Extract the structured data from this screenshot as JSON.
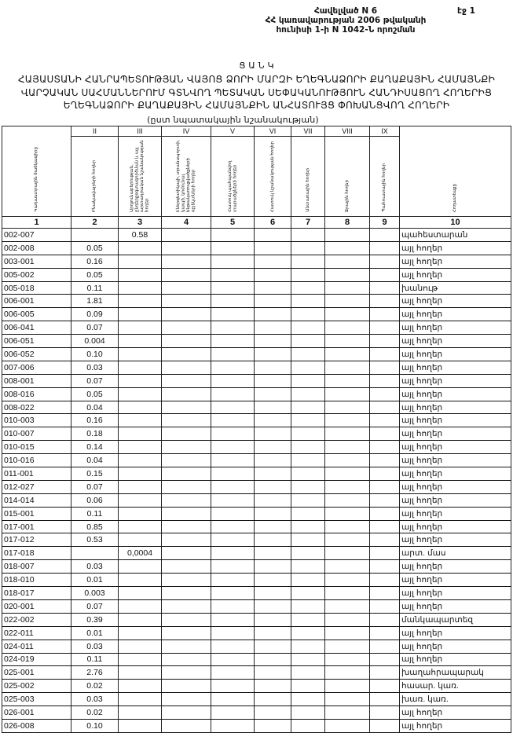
{
  "header": {
    "appendix": "Հավելված N 6",
    "line2": "ՀՀ կառավարության 2006 թվականի",
    "line3": "հունիսի 1-ի N 1042-Ն որոշման",
    "page": "էջ 1"
  },
  "title": {
    "heading": "Ց Ա Ն Կ",
    "line1": "ՀԱՅԱՍՏԱՆԻ ՀԱՆՐԱՊԵՏՈՒԹՅԱՆ ՎԱՅՈՑ ՁՈՐԻ ՄԱՐԶԻ ԵՂԵԳՆԱՁՈՐԻ ՔԱՂԱՔԱՅԻՆ ՀԱՄԱՅՆՔԻ",
    "line2": "ՎԱՐՉԱԿԱՆ ՍԱՀՄԱՆՆԵՐՈՒՄ  ԳՏՆՎՈՂ  ՊԵՏԱԿԱՆ ՍԵՓԱԿԱՆՈՒԹՅՈՒՆ  ՀԱՆԴԻՍԱՑՈՂ ՀՈՂԵՐԻՑ",
    "line3": "ԵՂԵԳՆԱՁՈՐԻ ՔԱՂԱՔԱՅԻՆ ՀԱՄԱՅՆՔԻՆ ԱՆՀԱՏՈՒՅՑ ՓՈԽԱՆՑՎՈՂ ՀՈՂԵՐԻ",
    "subtitle": "(ըստ նպատակային նշանակության)"
  },
  "table": {
    "roman": [
      "",
      "II",
      "III",
      "IV",
      "V",
      "VI",
      "VII",
      "VIII",
      "IX",
      ""
    ],
    "columns": [
      "Կադաստրային ծածկագիրը",
      "Բնակավայրերի հողեր",
      "Արդյունաբերության, ընդերքօգտագործման և այլ արտադրական նշանակության հողեր",
      "Էներգետիկայի, տրանսպորտի, կապի, կոմունալ ենթակառուցվածքների օբյեկտների հողեր",
      "Հատուկ պահպանվող տարածքների հողեր",
      "Հատուկ նշանակության հողեր",
      "Անտառային հողեր",
      "Ջրային հողեր",
      "Պահուստային հողեր",
      "Հողատեսքը"
    ],
    "numbers": [
      "1",
      "2",
      "3",
      "4",
      "5",
      "6",
      "7",
      "8",
      "9",
      "10"
    ],
    "rows": [
      {
        "code": "002-007",
        "c2": "",
        "c3": "0.58",
        "type": "պահեստարան"
      },
      {
        "code": "002-008",
        "c2": "0.05",
        "c3": "",
        "type": "այլ հողեր"
      },
      {
        "code": "003-001",
        "c2": "0.16",
        "c3": "",
        "type": "այլ հողեր"
      },
      {
        "code": "005-002",
        "c2": "0.05",
        "c3": "",
        "type": "այլ հողեր"
      },
      {
        "code": "005-018",
        "c2": "0.11",
        "c3": "",
        "type": "խանութ"
      },
      {
        "code": "006-001",
        "c2": "1.81",
        "c3": "",
        "type": "այլ հողեր"
      },
      {
        "code": "006-005",
        "c2": "0.09",
        "c3": "",
        "type": "այլ հողեր"
      },
      {
        "code": "006-041",
        "c2": "0.07",
        "c3": "",
        "type": "այլ հողեր"
      },
      {
        "code": "006-051",
        "c2": "0.004",
        "c3": "",
        "type": "այլ հողեր"
      },
      {
        "code": "006-052",
        "c2": "0.10",
        "c3": "",
        "type": "այլ հողեր"
      },
      {
        "code": "007-006",
        "c2": "0.03",
        "c3": "",
        "type": "այլ հողեր"
      },
      {
        "code": "008-001",
        "c2": "0.07",
        "c3": "",
        "type": "այլ հողեր"
      },
      {
        "code": "008-016",
        "c2": "0.05",
        "c3": "",
        "type": "այլ հողեր"
      },
      {
        "code": "008-022",
        "c2": "0.04",
        "c3": "",
        "type": "այլ հողեր"
      },
      {
        "code": "010-003",
        "c2": "0.16",
        "c3": "",
        "type": "այլ հողեր"
      },
      {
        "code": "010-007",
        "c2": "0.18",
        "c3": "",
        "type": "այլ հողեր"
      },
      {
        "code": "010-015",
        "c2": "0.14",
        "c3": "",
        "type": "այլ հողեր"
      },
      {
        "code": "010-016",
        "c2": "0.04",
        "c3": "",
        "type": "այլ հողեր"
      },
      {
        "code": "011-001",
        "c2": "0.15",
        "c3": "",
        "type": "այլ հողեր"
      },
      {
        "code": "012-027",
        "c2": "0.07",
        "c3": "",
        "type": "այլ հողեր"
      },
      {
        "code": "014-014",
        "c2": "0.06",
        "c3": "",
        "type": "այլ հողեր"
      },
      {
        "code": "015-001",
        "c2": "0.11",
        "c3": "",
        "type": "այլ հողեր"
      },
      {
        "code": "017-001",
        "c2": "0.85",
        "c3": "",
        "type": "այլ հողեր"
      },
      {
        "code": "017-012",
        "c2": "0.53",
        "c3": "",
        "type": "այլ հողեր"
      },
      {
        "code": "017-018",
        "c2": "",
        "c3": "0,0004",
        "type": "արտ. մաս"
      },
      {
        "code": "018-007",
        "c2": "0.03",
        "c3": "",
        "type": "այլ հողեր"
      },
      {
        "code": "018-010",
        "c2": "0.01",
        "c3": "",
        "type": "այլ հողեր"
      },
      {
        "code": "018-017",
        "c2": "0.003",
        "c3": "",
        "type": "այլ հողեր"
      },
      {
        "code": "020-001",
        "c2": "0.07",
        "c3": "",
        "type": "այլ հողեր"
      },
      {
        "code": "022-002",
        "c2": "0.39",
        "c3": "",
        "type": "մանկապարտեզ"
      },
      {
        "code": "022-011",
        "c2": "0.01",
        "c3": "",
        "type": "այլ հողեր"
      },
      {
        "code": "024-011",
        "c2": "0.03",
        "c3": "",
        "type": "այլ հողեր"
      },
      {
        "code": "024-019",
        "c2": "0.11",
        "c3": "",
        "type": "այլ հողեր"
      },
      {
        "code": "025-001",
        "c2": "2.76",
        "c3": "",
        "type": "խաղահրապարակ"
      },
      {
        "code": "025-002",
        "c2": "0.02",
        "c3": "",
        "type": "հասար. կառ."
      },
      {
        "code": "025-003",
        "c2": "0.03",
        "c3": "",
        "type": "խառ. կառ."
      },
      {
        "code": "026-001",
        "c2": "0.02",
        "c3": "",
        "type": "այլ հողեր"
      },
      {
        "code": "026-008",
        "c2": "0.10",
        "c3": "",
        "type": "այլ հողեր"
      }
    ]
  }
}
